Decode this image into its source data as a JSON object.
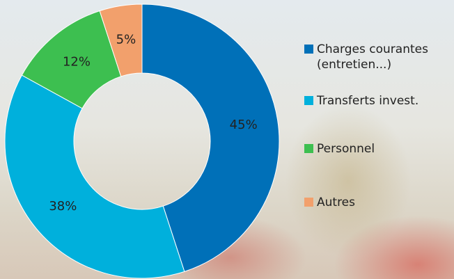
{
  "chart_data": {
    "type": "donut",
    "categories": [
      "Charges courantes (entretien...)",
      "Transferts invest.",
      "Personnel",
      "Autres"
    ],
    "values": [
      45,
      38,
      12,
      5
    ],
    "value_labels": [
      "45%",
      "38%",
      "12%",
      "5%"
    ],
    "colors": [
      "#0070b8",
      "#00b0dc",
      "#3dbf50",
      "#f2a06c"
    ],
    "legend": "right"
  }
}
